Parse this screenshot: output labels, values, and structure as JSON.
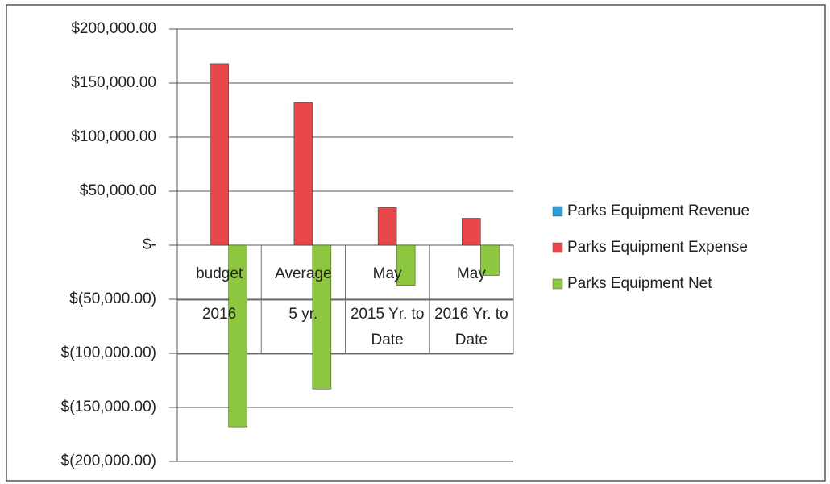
{
  "chart_data": {
    "type": "bar",
    "categories": [
      [
        "budget",
        "2016"
      ],
      [
        "Average",
        "5 yr."
      ],
      [
        "May",
        "2015 Yr. to Date"
      ],
      [
        "May",
        "2016 Yr. to Date"
      ]
    ],
    "series": [
      {
        "name": "Parks Equipment Revenue",
        "color": "#2e9fd9",
        "values": [
          0,
          0,
          0,
          0
        ]
      },
      {
        "name": "Parks Equipment Expense",
        "color": "#e8474c",
        "values": [
          168000,
          132000,
          35000,
          25000
        ]
      },
      {
        "name": "Parks Equipment Net",
        "color": "#8dc63f",
        "values": [
          -168000,
          -133000,
          -37000,
          -28000
        ]
      }
    ],
    "ylim": [
      -200000,
      200000
    ],
    "yticks": [
      {
        "value": 200000,
        "label": "$200,000.00"
      },
      {
        "value": 150000,
        "label": "$150,000.00"
      },
      {
        "value": 100000,
        "label": "$100,000.00"
      },
      {
        "value": 50000,
        "label": "$50,000.00"
      },
      {
        "value": 0,
        "label": "$-"
      },
      {
        "value": -50000,
        "label": "$(50,000.00)"
      },
      {
        "value": -100000,
        "label": "$(100,000.00)"
      },
      {
        "value": -150000,
        "label": "$(150,000.00)"
      },
      {
        "value": -200000,
        "label": "$(200,000.00)"
      }
    ],
    "grid": true,
    "legend": "right"
  }
}
